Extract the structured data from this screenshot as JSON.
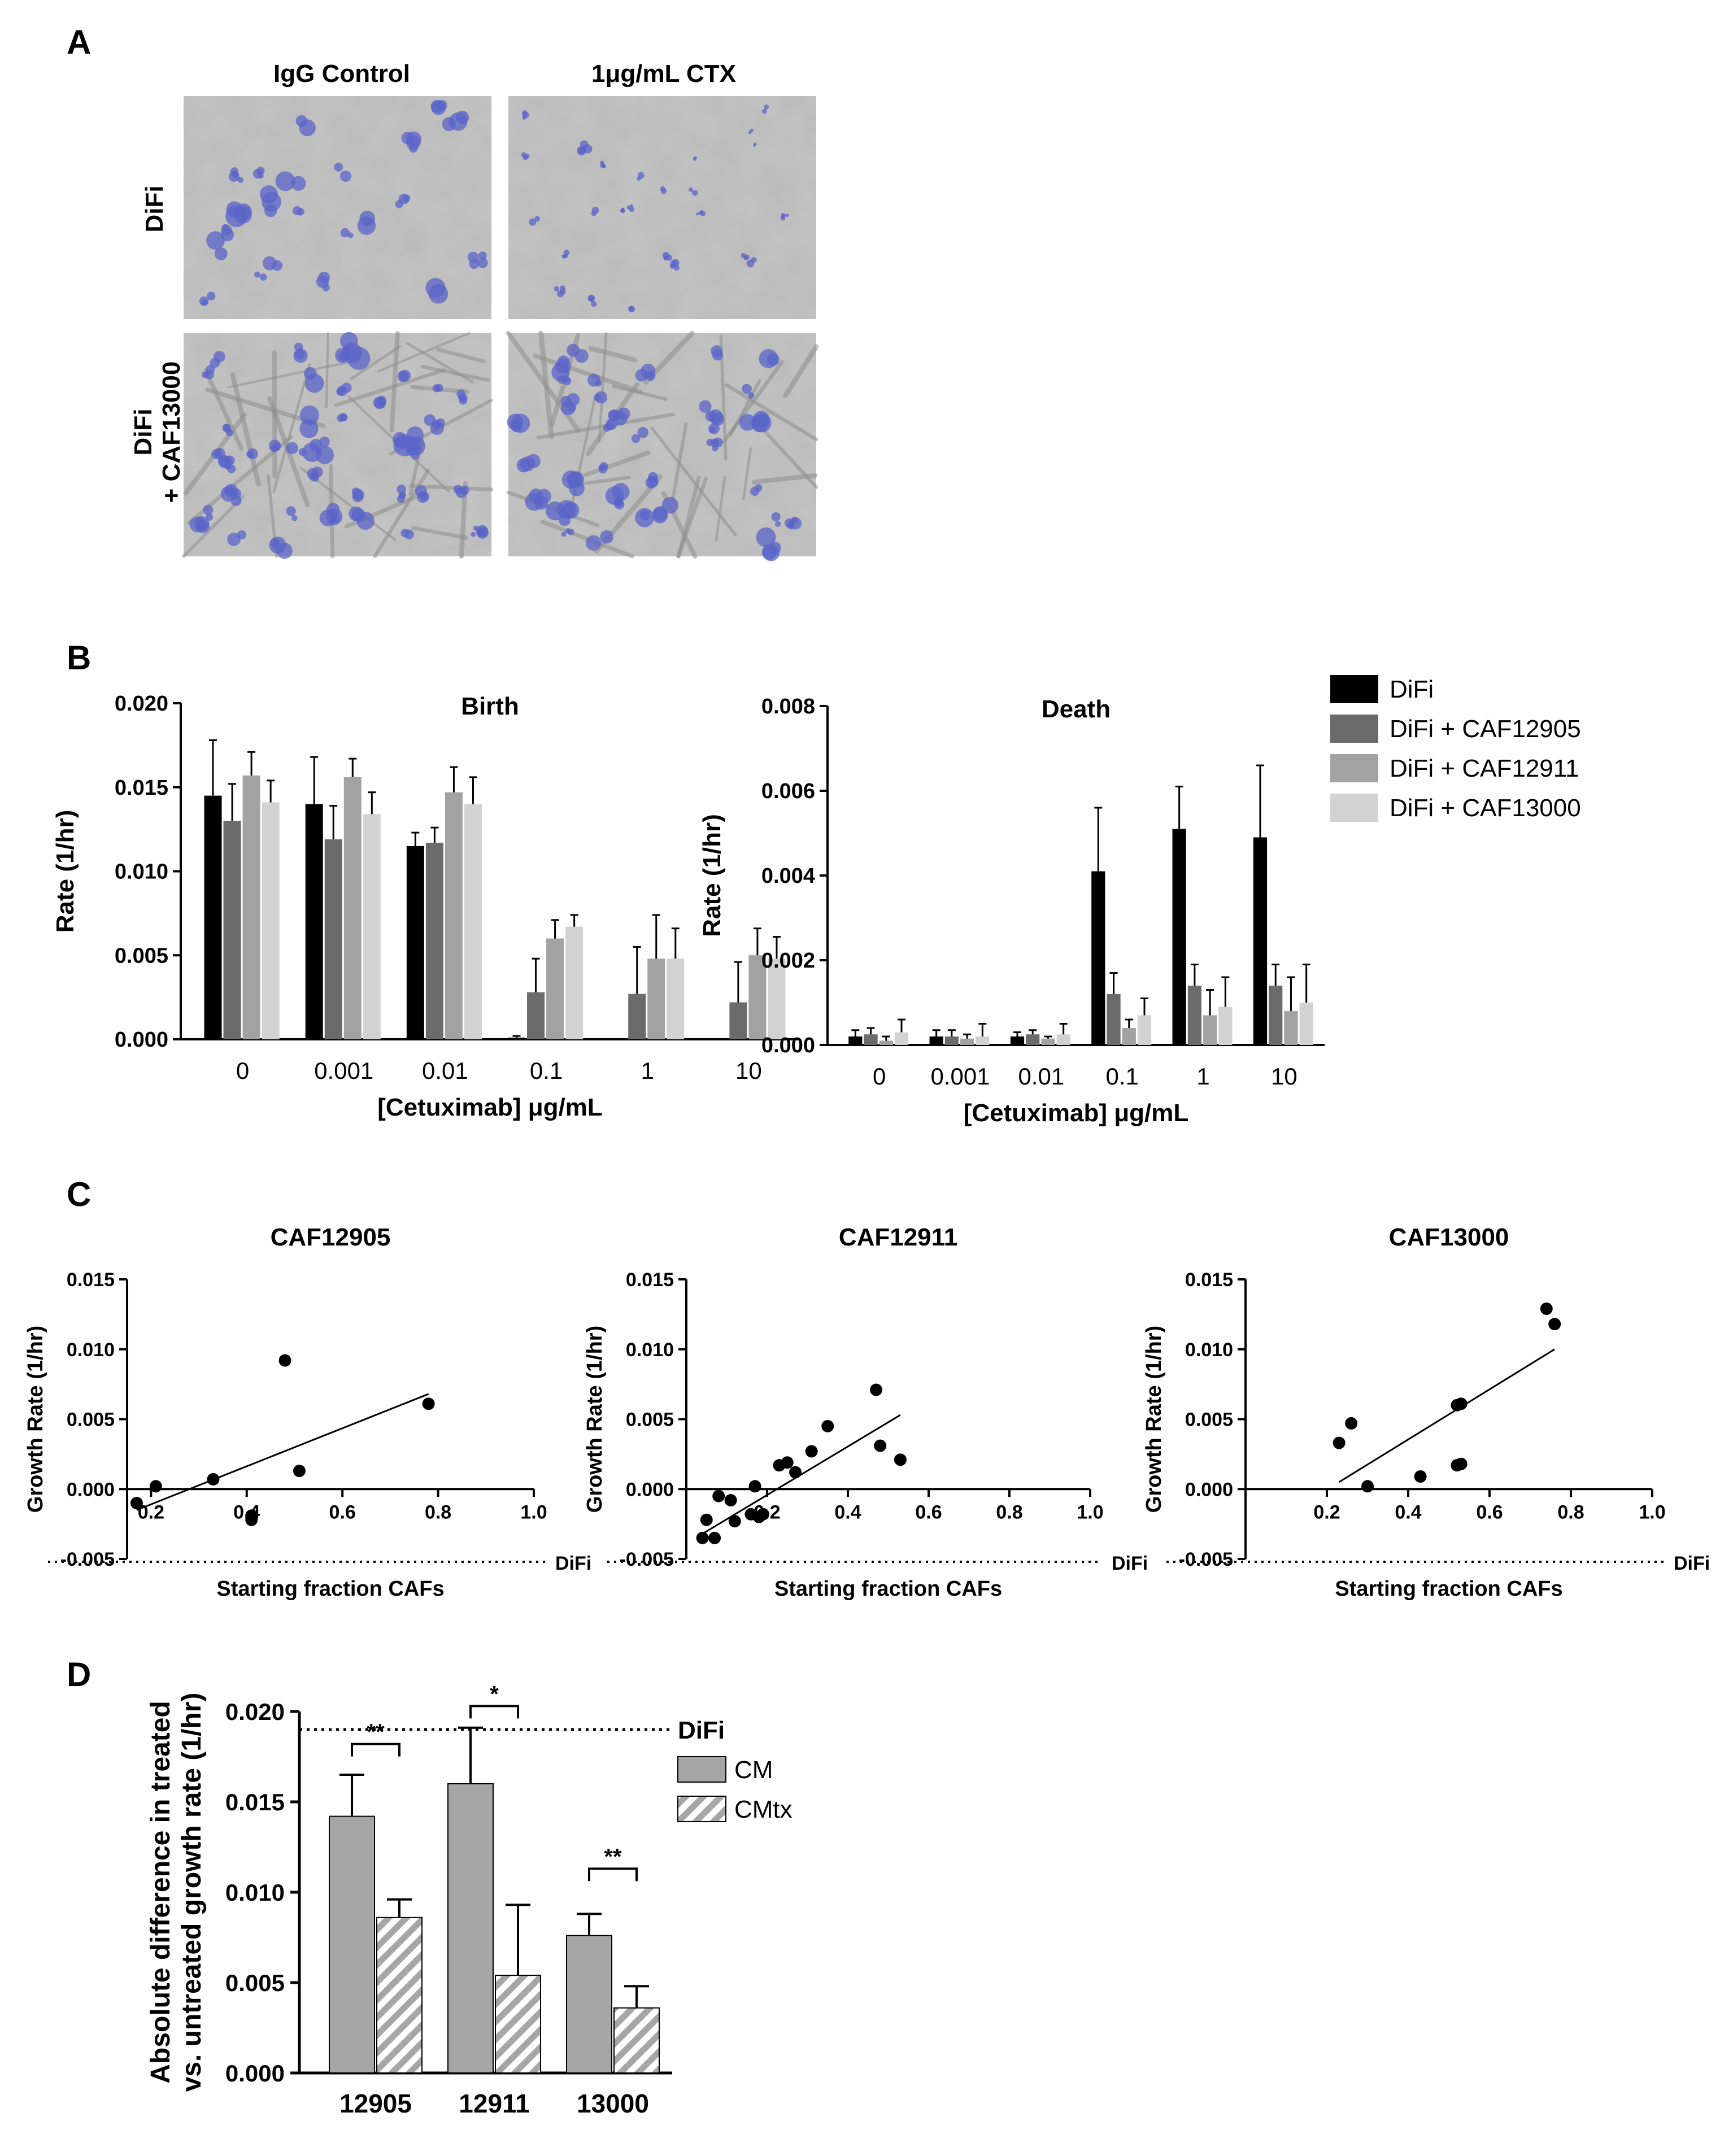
{
  "panel_letters": [
    "A",
    "B",
    "C",
    "D"
  ],
  "panel_a": {
    "col_headers": [
      "IgG Control",
      "1μg/mL CTX"
    ],
    "row_labels": [
      [
        "DiFi"
      ],
      [
        "DiFi",
        "+ CAF13000"
      ]
    ],
    "micrograph_colors": {
      "background": "#b9b9b9",
      "cell_stain": "#5a64c8"
    }
  },
  "legend_b": {
    "entries": [
      "DiFi",
      "DiFi + CAF12905",
      "DiFi + CAF12911",
      "DiFi + CAF13000"
    ],
    "colors": [
      "#000000",
      "#6b6b6b",
      "#a2a2a2",
      "#d2d2d2"
    ]
  },
  "legend_d": {
    "entries": [
      "CM",
      "CMtx"
    ],
    "colors": [
      "#a6a6a6",
      "hatched"
    ]
  },
  "chart_data": [
    {
      "id": "birth",
      "type": "bar",
      "title": "Birth",
      "xlabel": "[Cetuximab] μg/mL",
      "ylabel": "Rate (1/hr)",
      "ylim": [
        0,
        0.02
      ],
      "yticks": [
        "0.000",
        "0.005",
        "0.010",
        "0.015",
        "0.020"
      ],
      "categories": [
        "0",
        "0.001",
        "0.01",
        "0.1",
        "1",
        "10"
      ],
      "series": [
        {
          "name": "DiFi",
          "values": [
            0.0145,
            0.014,
            0.0115,
            0.0001,
            0,
            0
          ],
          "errors": [
            0.0033,
            0.0028,
            0.0008,
            0.0001,
            0,
            0
          ]
        },
        {
          "name": "DiFi + CAF12905",
          "values": [
            0.013,
            0.0119,
            0.0117,
            0.0028,
            0.0027,
            0.0022
          ],
          "errors": [
            0.0022,
            0.002,
            0.0009,
            0.002,
            0.0028,
            0.0024
          ]
        },
        {
          "name": "DiFi + CAF12911",
          "values": [
            0.0157,
            0.0156,
            0.0147,
            0.006,
            0.0048,
            0.005
          ],
          "errors": [
            0.0014,
            0.0011,
            0.0015,
            0.0011,
            0.0026,
            0.0016
          ]
        },
        {
          "name": "DiFi + CAF13000",
          "values": [
            0.0141,
            0.0134,
            0.014,
            0.0067,
            0.0048,
            0.0048
          ],
          "errors": [
            0.0013,
            0.0013,
            0.0016,
            0.0007,
            0.0018,
            0.0013
          ]
        }
      ]
    },
    {
      "id": "death",
      "type": "bar",
      "title": "Death",
      "xlabel": "[Cetuximab] μg/mL",
      "ylabel": "Rate (1/hr)",
      "ylim": [
        0,
        0.008
      ],
      "yticks": [
        "0.000",
        "0.002",
        "0.004",
        "0.006",
        "0.008"
      ],
      "categories": [
        "0",
        "0.001",
        "0.01",
        "0.1",
        "1",
        "10"
      ],
      "series": [
        {
          "name": "DiFi",
          "values": [
            0.0002,
            0.0002,
            0.0002,
            0.0041,
            0.0051,
            0.0049
          ],
          "errors": [
            0.00015,
            0.00015,
            0.0001,
            0.0015,
            0.001,
            0.0017
          ]
        },
        {
          "name": "DiFi + CAF12905",
          "values": [
            0.00025,
            0.0002,
            0.00025,
            0.0012,
            0.0014,
            0.0014
          ],
          "errors": [
            0.00015,
            0.00015,
            0.0001,
            0.0005,
            0.0005,
            0.0005
          ]
        },
        {
          "name": "DiFi + CAF12911",
          "values": [
            0.0001,
            0.00015,
            0.00015,
            0.0004,
            0.0007,
            0.0008
          ],
          "errors": [
            0.0001,
            0.0001,
            5e-05,
            0.0002,
            0.0006,
            0.0008
          ]
        },
        {
          "name": "DiFi + CAF13000",
          "values": [
            0.0003,
            0.0002,
            0.00025,
            0.0007,
            0.0009,
            0.001
          ],
          "errors": [
            0.0003,
            0.0003,
            0.00025,
            0.0004,
            0.0007,
            0.0009
          ]
        }
      ]
    },
    {
      "id": "c1",
      "type": "scatter",
      "title": "CAF12905",
      "xlabel": "Starting fraction CAFs",
      "ylabel": "Growth Rate (1/hr)",
      "xlim": [
        0.15,
        1.0
      ],
      "ylim": [
        -0.005,
        0.015
      ],
      "xticks": [
        "0.2",
        "0.4",
        "0.6",
        "0.8",
        "1.0"
      ],
      "yticks": [
        "-0.005",
        "0.000",
        "0.005",
        "0.010",
        "0.015"
      ],
      "reference": {
        "label": "DiFi",
        "y": -0.0052
      },
      "points": [
        [
          0.17,
          -0.001
        ],
        [
          0.21,
          0.0002
        ],
        [
          0.33,
          0.0007
        ],
        [
          0.41,
          -0.0019
        ],
        [
          0.41,
          -0.0022
        ],
        [
          0.48,
          0.0092
        ],
        [
          0.51,
          0.0013
        ],
        [
          0.78,
          0.0061
        ]
      ],
      "fit": [
        [
          0.17,
          -0.0015
        ],
        [
          0.78,
          0.0068
        ]
      ]
    },
    {
      "id": "c2",
      "type": "scatter",
      "title": "CAF12911",
      "xlabel": "Starting fraction CAFs",
      "ylabel": "Growth Rate (1/hr)",
      "xlim": [
        0.0,
        1.0
      ],
      "ylim": [
        -0.005,
        0.015
      ],
      "xticks": [
        "0.2",
        "0.4",
        "0.6",
        "0.8",
        "1.0"
      ],
      "yticks": [
        "-0.005",
        "0.000",
        "0.005",
        "0.010",
        "0.015"
      ],
      "reference": {
        "label": "DiFi",
        "y": -0.0052
      },
      "points": [
        [
          0.04,
          -0.0035
        ],
        [
          0.07,
          -0.0035
        ],
        [
          0.05,
          -0.0022
        ],
        [
          0.08,
          -0.0005
        ],
        [
          0.11,
          -0.0008
        ],
        [
          0.12,
          -0.0023
        ],
        [
          0.16,
          -0.0018
        ],
        [
          0.17,
          0.0002
        ],
        [
          0.18,
          -0.002
        ],
        [
          0.19,
          -0.0018
        ],
        [
          0.23,
          0.0017
        ],
        [
          0.25,
          0.0019
        ],
        [
          0.27,
          0.0012
        ],
        [
          0.31,
          0.0027
        ],
        [
          0.35,
          0.0045
        ],
        [
          0.47,
          0.0071
        ],
        [
          0.48,
          0.0031
        ],
        [
          0.53,
          0.0021
        ]
      ],
      "fit": [
        [
          0.04,
          -0.0032
        ],
        [
          0.53,
          0.0053
        ]
      ]
    },
    {
      "id": "c3",
      "type": "scatter",
      "title": "CAF13000",
      "xlabel": "Starting fraction CAFs",
      "ylabel": "Growth Rate (1/hr)",
      "xlim": [
        0.0,
        1.0
      ],
      "ylim": [
        -0.005,
        0.015
      ],
      "xticks": [
        "0.2",
        "0.4",
        "0.6",
        "0.8",
        "1.0"
      ],
      "yticks": [
        "-0.005",
        "0.000",
        "0.005",
        "0.010",
        "0.015"
      ],
      "reference": {
        "label": "DiFi",
        "y": -0.0052
      },
      "points": [
        [
          0.23,
          0.0033
        ],
        [
          0.26,
          0.0047
        ],
        [
          0.3,
          0.0002
        ],
        [
          0.43,
          0.0009
        ],
        [
          0.52,
          0.0017
        ],
        [
          0.53,
          0.0018
        ],
        [
          0.52,
          0.006
        ],
        [
          0.53,
          0.0061
        ],
        [
          0.74,
          0.0129
        ],
        [
          0.76,
          0.0118
        ]
      ],
      "fit": [
        [
          0.23,
          0.0005
        ],
        [
          0.76,
          0.01
        ]
      ]
    },
    {
      "id": "d",
      "type": "bar",
      "ylabel": [
        "Absolute difference in treated",
        "vs. untreated growth rate (1/hr)"
      ],
      "ylim": [
        0,
        0.02
      ],
      "yticks": [
        "0.000",
        "0.005",
        "0.010",
        "0.015",
        "0.020"
      ],
      "categories": [
        "12905",
        "12911",
        "13000"
      ],
      "series": [
        {
          "name": "CM",
          "values": [
            0.0142,
            0.016,
            0.0076
          ],
          "errors": [
            0.0023,
            0.0031,
            0.0012
          ]
        },
        {
          "name": "CMtx",
          "values": [
            0.0086,
            0.0054,
            0.0036
          ],
          "errors": [
            0.001,
            0.0039,
            0.0012
          ]
        }
      ],
      "reference": {
        "label": "DiFi",
        "y": 0.019
      },
      "significance": [
        {
          "group": 0,
          "label": "**",
          "y": 0.0182
        },
        {
          "group": 1,
          "label": "*",
          "y": 0.0203
        },
        {
          "group": 2,
          "label": "**",
          "y": 0.0113
        }
      ]
    }
  ]
}
